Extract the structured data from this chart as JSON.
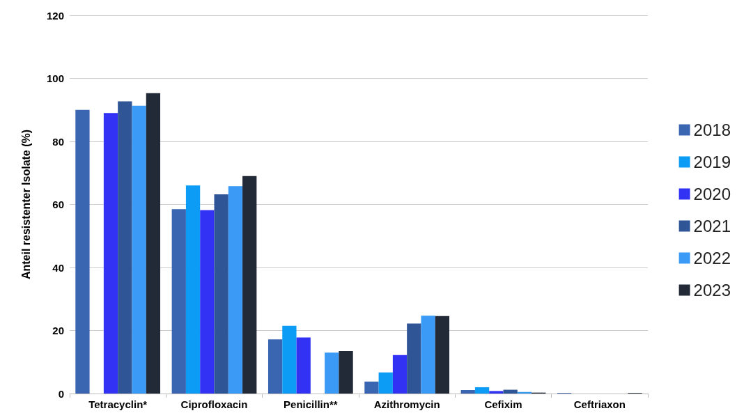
{
  "chart_data": {
    "type": "bar",
    "ylabel": "Anteil resistenter Isolate (%)",
    "categories": [
      "Tetracyclin*",
      "Ciprofloxacin",
      "Penicillin**",
      "Azithromycin",
      "Cefixim",
      "Ceftriaxon"
    ],
    "series": [
      {
        "name": "2018",
        "color": "#3a65b0",
        "values": [
          90,
          58.5,
          17.2,
          3.8,
          1.1,
          0.2
        ]
      },
      {
        "name": "2019",
        "color": "#0d9cf5",
        "values": [
          null,
          66,
          21.5,
          6.7,
          2,
          0
        ]
      },
      {
        "name": "2020",
        "color": "#3232f5",
        "values": [
          89,
          58.2,
          17.8,
          12.2,
          0.8,
          0
        ]
      },
      {
        "name": "2021",
        "color": "#2f5597",
        "values": [
          92.7,
          63.2,
          null,
          22.2,
          1.2,
          0
        ]
      },
      {
        "name": "2022",
        "color": "#3a9af5",
        "values": [
          91.3,
          65.8,
          13,
          24.7,
          0.5,
          0
        ]
      },
      {
        "name": "2023",
        "color": "#222a38",
        "values": [
          95.3,
          69,
          13.5,
          24.6,
          0.3,
          0.2
        ]
      }
    ],
    "ylim": [
      0,
      120
    ],
    "yticks": [
      0,
      20,
      40,
      60,
      80,
      100,
      120
    ],
    "grid": "y",
    "legend": "right"
  }
}
